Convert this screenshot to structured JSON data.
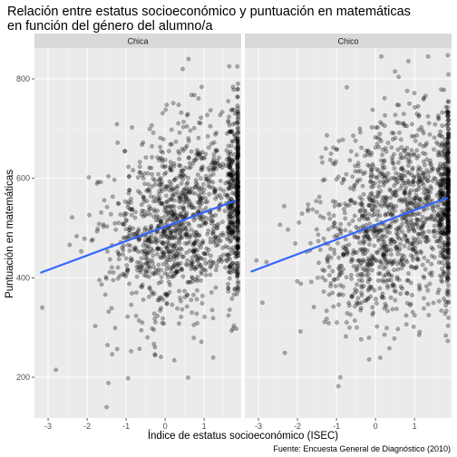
{
  "chart_data": {
    "type": "scatter",
    "title": "Relación entre estatus socioeconómico y puntuación en matemáticas",
    "subtitle": "en función del género del alumno/a",
    "xlabel": "Índice de estatus socioeconómico (ISEC)",
    "ylabel": "Puntuación en matemáticas",
    "caption": "Fuente: Encuesta General de Diagnóstico (2010)",
    "xlim": [
      -3.35,
      1.95
    ],
    "ylim": [
      118,
      862
    ],
    "x_ticks": [
      -3,
      -2,
      -1,
      0,
      1,
      2
    ],
    "x_tick_labels": [
      "-3",
      "-2",
      "-1",
      "0",
      "1",
      "2"
    ],
    "y_ticks": [
      200,
      400,
      600,
      800
    ],
    "y_tick_labels": [
      "200",
      "400",
      "600",
      "800"
    ],
    "grid": true,
    "legend": "none",
    "point_color": "#000000",
    "point_alpha": 0.3,
    "trend_color": "#3366ff",
    "panels": [
      {
        "strip_label": "Chica",
        "trend": {
          "x": [
            -3.2,
            1.8
          ],
          "y": [
            410,
            555
          ]
        },
        "outliers": [
          {
            "x": -2.8,
            "y": 215
          },
          {
            "x": -1.5,
            "y": 140
          },
          {
            "x": -0.95,
            "y": 198
          },
          {
            "x": 0.6,
            "y": 840
          },
          {
            "x": 0.45,
            "y": 820
          },
          {
            "x": 1.85,
            "y": 825
          },
          {
            "x": -3.15,
            "y": 340
          }
        ]
      },
      {
        "strip_label": "Chico",
        "trend": {
          "x": [
            -3.2,
            1.85
          ],
          "y": [
            412,
            561
          ]
        },
        "outliers": [
          {
            "x": -0.95,
            "y": 182
          },
          {
            "x": -0.9,
            "y": 200
          },
          {
            "x": 0.15,
            "y": 845
          },
          {
            "x": 1.35,
            "y": 845
          },
          {
            "x": 0.5,
            "y": 815
          },
          {
            "x": -2.9,
            "y": 350
          },
          {
            "x": -3.05,
            "y": 435
          }
        ]
      }
    ]
  }
}
